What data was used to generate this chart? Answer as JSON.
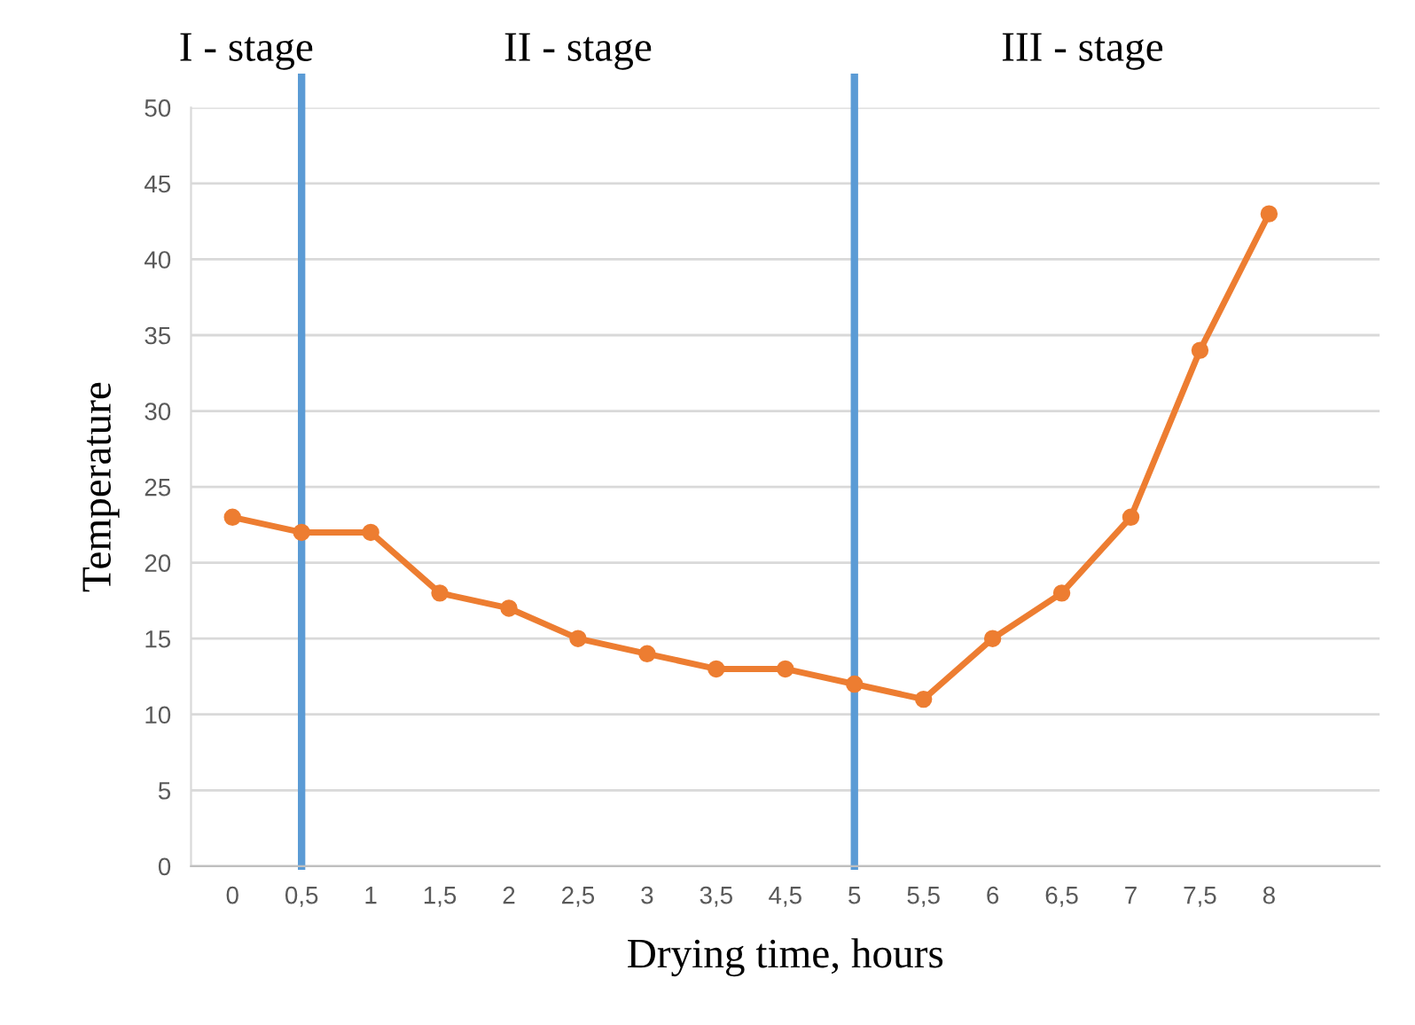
{
  "chart_data": {
    "type": "line",
    "xlabel": "Drying time, hours",
    "ylabel": "Temperature",
    "annotations": [
      "I - stage",
      "II - stage",
      "III - stage"
    ],
    "categories": [
      "0",
      "0,5",
      "1",
      "1,5",
      "2",
      "2,5",
      "3",
      "3,5",
      "4,5",
      "5",
      "5,5",
      "6",
      "6,5",
      "7",
      "7,5",
      "8"
    ],
    "series": [
      {
        "color": "#ed7d31",
        "values": [
          23,
          22,
          22,
          18,
          17,
          15,
          14,
          13,
          13,
          12,
          11,
          15,
          18,
          23,
          34,
          43
        ]
      }
    ],
    "ylim": [
      0,
      50
    ],
    "yticks": [
      0,
      5,
      10,
      15,
      20,
      25,
      30,
      35,
      40,
      45,
      50
    ],
    "ref_lines": [
      {
        "axis": "x",
        "value": "0,5",
        "color": "#5b9bd5"
      },
      {
        "axis": "x",
        "value": "5",
        "color": "#5b9bd5"
      }
    ],
    "grid": "y",
    "marker": "circle",
    "line_style": "solid"
  }
}
